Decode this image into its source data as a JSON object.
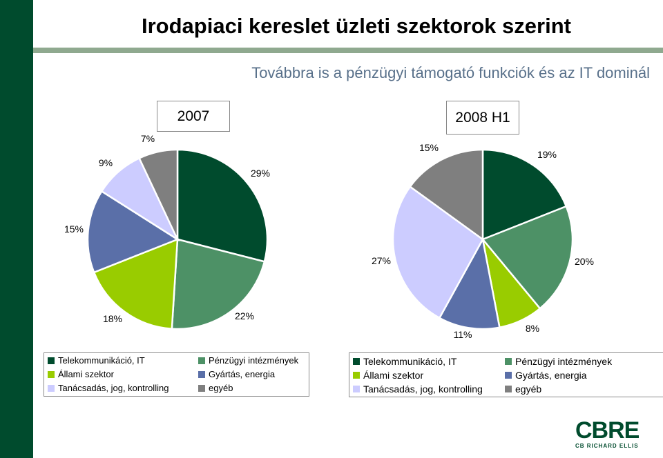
{
  "title": "Irodapiaci kereslet üzleti szektorok szerint",
  "subtitle": "Továbbra is a pénzügyi támogató funkciók és az IT dominál",
  "colors": {
    "sidebar": "#004b2d",
    "rule": "#8fa98f",
    "subtitle": "#58708a"
  },
  "logo": {
    "word": "CBRE",
    "sub": "CB RICHARD ELLIS"
  },
  "chart_data": [
    {
      "type": "pie",
      "title": "2007",
      "categories": [
        "Telekommunikáció, IT",
        "Pénzügyi intézmények",
        "Állami szektor",
        "Gyártás, energia",
        "Tanácsadás, jog, kontrolling",
        "egyéb"
      ],
      "values": [
        29,
        22,
        18,
        15,
        9,
        7
      ],
      "labels": [
        "29%",
        "22%",
        "18%",
        "15%",
        "9%",
        "7%"
      ],
      "colors": [
        "#004b2d",
        "#4d9166",
        "#99cc00",
        "#5a6fa8",
        "#ccccff",
        "#7f7f7f"
      ],
      "legend": "bottom"
    },
    {
      "type": "pie",
      "title": "2008 H1",
      "categories": [
        "Telekommunikáció, IT",
        "Pénzügyi intézmények",
        "Állami szektor",
        "Gyártás, energia",
        "Tanácsadás, jog, kontrolling",
        "egyéb"
      ],
      "values": [
        19,
        20,
        8,
        11,
        27,
        15
      ],
      "labels": [
        "19%",
        "20%",
        "8%",
        "11%",
        "27%",
        "15%"
      ],
      "colors": [
        "#004b2d",
        "#4d9166",
        "#99cc00",
        "#5a6fa8",
        "#ccccff",
        "#7f7f7f"
      ],
      "legend": "bottom"
    }
  ]
}
